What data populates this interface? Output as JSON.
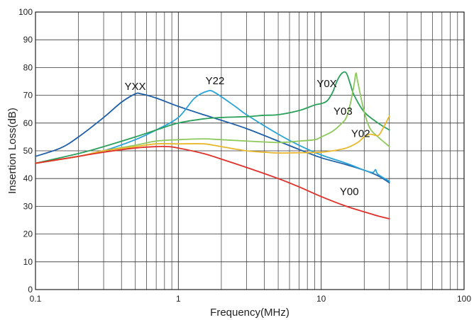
{
  "chart_data": {
    "type": "line",
    "title": "",
    "xlabel": "Frequency(MHz)",
    "ylabel": "Insertion Loss(dB)",
    "x_scale": "log",
    "xlim": [
      0.1,
      100
    ],
    "ylim": [
      0,
      100
    ],
    "x_ticks": [
      0.1,
      1,
      10,
      100
    ],
    "x_tick_labels": [
      "0.1",
      "1",
      "10",
      "100"
    ],
    "y_ticks": [
      0,
      10,
      20,
      30,
      40,
      50,
      60,
      70,
      80,
      90,
      100
    ],
    "y_tick_labels": [
      "0",
      "10",
      "20",
      "30",
      "40",
      "50",
      "60",
      "70",
      "80",
      "90",
      "100"
    ],
    "grid": true,
    "legend": "none",
    "series": [
      {
        "name": "YXX",
        "color": "#1f5fa8",
        "points": [
          [
            0.1,
            48
          ],
          [
            0.15,
            51
          ],
          [
            0.2,
            55
          ],
          [
            0.3,
            62
          ],
          [
            0.4,
            67.5
          ],
          [
            0.5,
            70.5
          ],
          [
            0.55,
            70.5
          ],
          [
            0.7,
            69
          ],
          [
            1,
            66
          ],
          [
            1.5,
            63
          ],
          [
            2,
            61
          ],
          [
            3,
            58
          ],
          [
            5,
            53.5
          ],
          [
            7,
            50.5
          ],
          [
            10,
            47.5
          ],
          [
            15,
            45
          ],
          [
            20,
            43
          ],
          [
            25,
            41
          ],
          [
            30,
            38.5
          ]
        ]
      },
      {
        "name": "Y22",
        "color": "#2aa3d6",
        "points": [
          [
            0.1,
            45.5
          ],
          [
            0.2,
            48
          ],
          [
            0.3,
            50
          ],
          [
            0.5,
            54
          ],
          [
            0.7,
            57.5
          ],
          [
            1,
            62
          ],
          [
            1.3,
            69
          ],
          [
            1.6,
            71.5
          ],
          [
            1.8,
            71
          ],
          [
            2.5,
            66
          ],
          [
            3,
            63
          ],
          [
            5,
            56
          ],
          [
            7,
            52
          ],
          [
            10,
            48.5
          ],
          [
            15,
            45.5
          ],
          [
            20,
            43
          ],
          [
            23,
            42.2
          ],
          [
            24,
            43.2
          ],
          [
            25,
            41.5
          ],
          [
            30,
            39
          ]
        ]
      },
      {
        "name": "Y0X",
        "color": "#2aa05a",
        "points": [
          [
            0.1,
            45.5
          ],
          [
            0.2,
            49
          ],
          [
            0.3,
            51.5
          ],
          [
            0.5,
            55
          ],
          [
            0.7,
            57.5
          ],
          [
            1,
            60
          ],
          [
            1.5,
            61.5
          ],
          [
            2,
            62
          ],
          [
            3,
            62.3
          ],
          [
            4,
            62.8
          ],
          [
            5,
            63
          ],
          [
            7,
            64.5
          ],
          [
            9,
            66.5
          ],
          [
            10,
            67
          ],
          [
            11,
            68
          ],
          [
            12,
            71
          ],
          [
            13,
            75.5
          ],
          [
            14,
            78
          ],
          [
            15,
            78
          ],
          [
            16,
            74
          ],
          [
            17,
            70
          ],
          [
            20,
            64
          ],
          [
            25,
            60
          ],
          [
            30,
            57.5
          ]
        ]
      },
      {
        "name": "Y03",
        "color": "#8dc95c",
        "points": [
          [
            0.1,
            45.5
          ],
          [
            0.2,
            48
          ],
          [
            0.3,
            50
          ],
          [
            0.5,
            52
          ],
          [
            0.7,
            53.5
          ],
          [
            1,
            54
          ],
          [
            1.5,
            54.3
          ],
          [
            2,
            54
          ],
          [
            3,
            53.5
          ],
          [
            5,
            53
          ],
          [
            7,
            53.5
          ],
          [
            9,
            54
          ],
          [
            10,
            55
          ],
          [
            12,
            57
          ],
          [
            14,
            60
          ],
          [
            15,
            62
          ],
          [
            16,
            67
          ],
          [
            17,
            74
          ],
          [
            17.5,
            78
          ],
          [
            18,
            75
          ],
          [
            20,
            64
          ],
          [
            22,
            58
          ],
          [
            25,
            55
          ],
          [
            30,
            51.5
          ]
        ]
      },
      {
        "name": "Y02",
        "color": "#e8b82a",
        "points": [
          [
            0.1,
            45.5
          ],
          [
            0.2,
            48
          ],
          [
            0.3,
            50
          ],
          [
            0.5,
            51.5
          ],
          [
            0.7,
            52.5
          ],
          [
            1,
            52.5
          ],
          [
            1.5,
            52.5
          ],
          [
            2,
            51.5
          ],
          [
            3,
            50
          ],
          [
            4,
            49.5
          ],
          [
            5,
            49.2
          ],
          [
            7,
            49.3
          ],
          [
            10,
            49.5
          ],
          [
            12,
            50
          ],
          [
            15,
            51
          ],
          [
            18,
            53
          ],
          [
            20,
            55
          ],
          [
            22,
            56
          ],
          [
            25,
            55.5
          ],
          [
            27,
            58
          ],
          [
            30,
            62.5
          ]
        ]
      },
      {
        "name": "Y00",
        "color": "#e0302a",
        "points": [
          [
            0.1,
            45.5
          ],
          [
            0.2,
            48
          ],
          [
            0.3,
            49.5
          ],
          [
            0.5,
            51
          ],
          [
            0.7,
            51.5
          ],
          [
            0.85,
            51.5
          ],
          [
            1,
            51
          ],
          [
            1.5,
            49
          ],
          [
            2,
            47
          ],
          [
            3,
            44
          ],
          [
            5,
            40
          ],
          [
            7,
            37
          ],
          [
            10,
            33.5
          ],
          [
            15,
            30
          ],
          [
            20,
            28
          ],
          [
            25,
            26.5
          ],
          [
            30,
            25.5
          ]
        ]
      }
    ],
    "annotations": [
      {
        "text": "YXX",
        "x": 0.42,
        "y": 72
      },
      {
        "text": "Y22",
        "x": 1.55,
        "y": 74
      },
      {
        "text": "Y0X",
        "x": 9.3,
        "y": 73
      },
      {
        "text": "Y03",
        "x": 12.2,
        "y": 63
      },
      {
        "text": "Y02",
        "x": 16.2,
        "y": 55
      },
      {
        "text": "Y00",
        "x": 13.5,
        "y": 34
      }
    ]
  }
}
